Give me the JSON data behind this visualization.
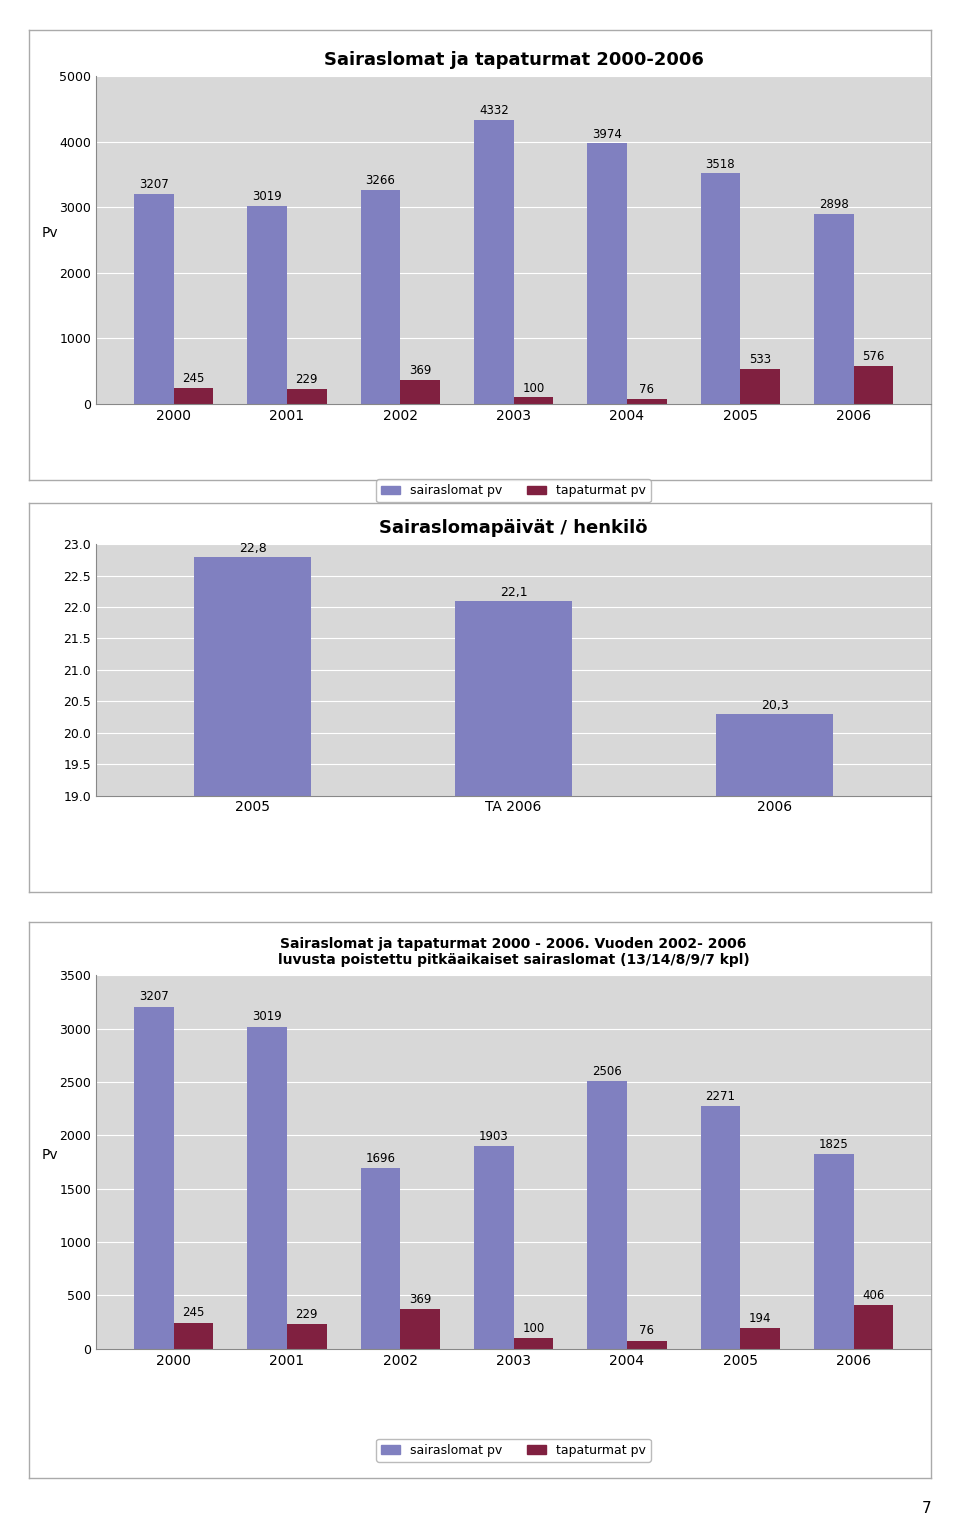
{
  "chart1": {
    "title": "Sairaslomat ja tapaturmat 2000-2006",
    "years": [
      "2000",
      "2001",
      "2002",
      "2003",
      "2004",
      "2005",
      "2006"
    ],
    "sairaslomat": [
      3207,
      3019,
      3266,
      4332,
      3974,
      3518,
      2898
    ],
    "tapaturmat": [
      245,
      229,
      369,
      100,
      76,
      533,
      576
    ],
    "ylabel": "Pv",
    "ylim": [
      0,
      5000
    ],
    "yticks": [
      0,
      1000,
      2000,
      3000,
      4000,
      5000
    ],
    "bar_color_sairas": "#8080c0",
    "bar_color_tapat": "#802040",
    "legend_sairas": "sairaslomat pv",
    "legend_tapat": "tapaturmat pv"
  },
  "chart2": {
    "title": "Sairaslomapäivät / henkilö",
    "categories": [
      "2005",
      "TA 2006",
      "2006"
    ],
    "values": [
      22.8,
      22.1,
      20.3
    ],
    "ylim": [
      19,
      23
    ],
    "yticks": [
      19,
      19.5,
      20,
      20.5,
      21,
      21.5,
      22,
      22.5,
      23
    ],
    "bar_color": "#8080c0"
  },
  "chart3": {
    "title": "Sairaslomat ja tapaturmat 2000 - 2006.",
    "subtitle_bold": "Vuoden 2002- 2006",
    "subtitle_normal": "luvusta poistettu pitkäaikaiset sairaslomat (13/14/8/9/7 kpl)",
    "years": [
      "2000",
      "2001",
      "2002",
      "2003",
      "2004",
      "2005",
      "2006"
    ],
    "sairaslomat": [
      3207,
      3019,
      1696,
      1903,
      2506,
      2271,
      1825
    ],
    "tapaturmat": [
      245,
      229,
      369,
      100,
      76,
      194,
      406
    ],
    "ylabel": "Pv",
    "ylim": [
      0,
      3500
    ],
    "yticks": [
      0,
      500,
      1000,
      1500,
      2000,
      2500,
      3000,
      3500
    ],
    "bar_color_sairas": "#8080c0",
    "bar_color_tapat": "#802040",
    "legend_sairas": "sairaslomat pv",
    "legend_tapat": "tapaturmat pv"
  },
  "plot_bg": "#d8d8d8",
  "panel_bg": "#ffffff",
  "grid_color": "#ffffff"
}
